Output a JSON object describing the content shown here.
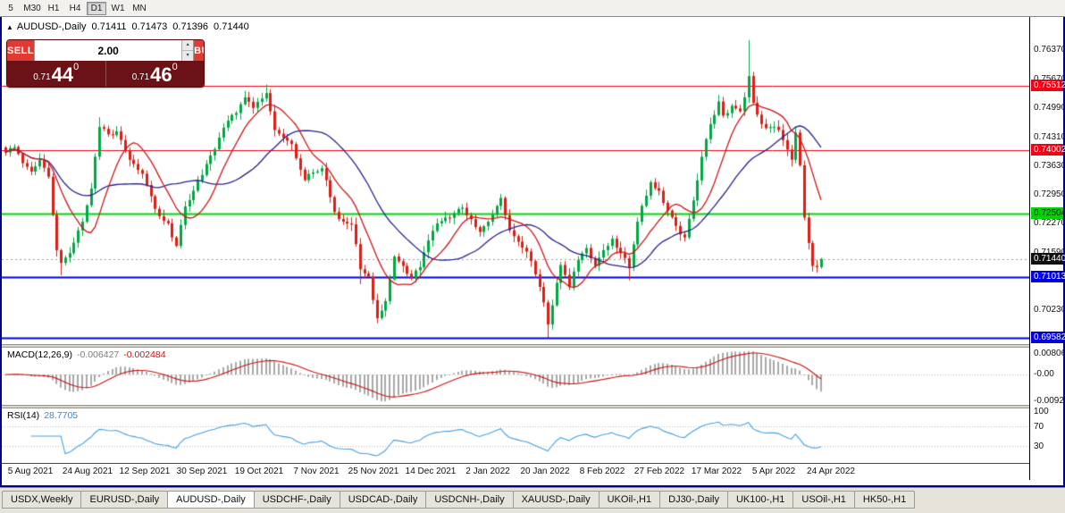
{
  "toolbar": {
    "timeframes": [
      "5",
      "M30",
      "H1",
      "H4",
      "D1",
      "W1",
      "MN"
    ],
    "active": "D1"
  },
  "chart": {
    "title": "AUDUSD-,Daily",
    "ohlc": {
      "open": "0.71411",
      "high": "0.71473",
      "low": "0.71396",
      "close": "0.71440"
    }
  },
  "trade_panel": {
    "sell_label": "SELL",
    "buy_label": "BUY",
    "volume": "2.00",
    "bid": {
      "prefix": "0.71",
      "pips": "44",
      "point": "0"
    },
    "ask": {
      "prefix": "0.71",
      "pips": "46",
      "point": "0"
    }
  },
  "price_scale": {
    "badges": [
      {
        "text": "0.75512",
        "bg": "#f00014",
        "fg": "#ffffff"
      },
      {
        "text": "0.74002",
        "bg": "#f00014",
        "fg": "#ffffff"
      },
      {
        "text": "0.72504",
        "bg": "#00d400",
        "fg": "#002b00"
      },
      {
        "text": "0.71440",
        "bg": "#101010",
        "fg": "#ffffff"
      },
      {
        "text": "0.71013",
        "bg": "#0000dc",
        "fg": "#ffffff"
      },
      {
        "text": "0.69582",
        "bg": "#0000dc",
        "fg": "#ffffff"
      }
    ]
  },
  "macd_header": {
    "label": "MACD(12,26,9)",
    "main": "-0.006427",
    "signal": "-0.002484"
  },
  "rsi_header": {
    "label": "RSI(14)",
    "value": "28.7705"
  },
  "tabs": {
    "active_index": 2,
    "items": [
      "USDX,Weekly",
      "EURUSD-,Daily",
      "AUDUSD-,Daily",
      "USDCHF-,Daily",
      "USDCAD-,Daily",
      "USDCNH-,Daily",
      "XAUUSD-,Daily",
      "UKOil-,H1",
      "DJ30-,Daily",
      "UK100-,H1",
      "USOil-,H1",
      "HK50-,H1"
    ]
  },
  "chart_data": {
    "type": "candlestick",
    "symbol": "AUDUSD",
    "timeframe": "Daily",
    "ylim": [
      0.6948,
      0.771
    ],
    "y_ticks": [
      "0.76370",
      "0.75670",
      "0.74990",
      "0.74310",
      "0.73630",
      "0.72950",
      "0.72270",
      "0.71590",
      "0.70230"
    ],
    "x_labels": [
      "5 Aug 2021",
      "24 Aug 2021",
      "12 Sep 2021",
      "30 Sep 2021",
      "19 Oct 2021",
      "7 Nov 2021",
      "25 Nov 2021",
      "14 Dec 2021",
      "2 Jan 2022",
      "20 Jan 2022",
      "8 Feb 2022",
      "27 Feb 2022",
      "17 Mar 2022",
      "5 Apr 2022",
      "24 Apr 2022"
    ],
    "candle_count": 192,
    "first_x": 4,
    "spacing": 4.78,
    "body_width": 3,
    "noise": 0.0013,
    "candle_colors": {
      "up": "#00a843",
      "down": "#dc1f14"
    },
    "close_waypoints": [
      [
        0,
        0.7395
      ],
      [
        2,
        0.7408
      ],
      [
        4,
        0.737
      ],
      [
        6,
        0.735
      ],
      [
        8,
        0.7378
      ],
      [
        10,
        0.7338
      ],
      [
        12,
        0.7165
      ],
      [
        13,
        0.7135
      ],
      [
        15,
        0.7158
      ],
      [
        18,
        0.7232
      ],
      [
        20,
        0.731
      ],
      [
        22,
        0.7455
      ],
      [
        24,
        0.7438
      ],
      [
        26,
        0.7445
      ],
      [
        28,
        0.74
      ],
      [
        30,
        0.7368
      ],
      [
        32,
        0.7345
      ],
      [
        34,
        0.7292
      ],
      [
        36,
        0.7245
      ],
      [
        38,
        0.7228
      ],
      [
        40,
        0.7175
      ],
      [
        42,
        0.7268
      ],
      [
        44,
        0.7305
      ],
      [
        46,
        0.7342
      ],
      [
        48,
        0.7388
      ],
      [
        50,
        0.743
      ],
      [
        52,
        0.747
      ],
      [
        54,
        0.7488
      ],
      [
        56,
        0.7525
      ],
      [
        58,
        0.75
      ],
      [
        61,
        0.7535
      ],
      [
        63,
        0.7448
      ],
      [
        65,
        0.743
      ],
      [
        67,
        0.7415
      ],
      [
        70,
        0.733
      ],
      [
        72,
        0.7348
      ],
      [
        74,
        0.7358
      ],
      [
        76,
        0.729
      ],
      [
        77,
        0.7255
      ],
      [
        79,
        0.7232
      ],
      [
        81,
        0.7226
      ],
      [
        83,
        0.712
      ],
      [
        85,
        0.7102
      ],
      [
        87,
        0.7005
      ],
      [
        89,
        0.7045
      ],
      [
        91,
        0.715
      ],
      [
        93,
        0.7128
      ],
      [
        95,
        0.7098
      ],
      [
        97,
        0.7125
      ],
      [
        99,
        0.7188
      ],
      [
        101,
        0.7228
      ],
      [
        103,
        0.7242
      ],
      [
        105,
        0.7252
      ],
      [
        107,
        0.7265
      ],
      [
        109,
        0.7238
      ],
      [
        111,
        0.7208
      ],
      [
        113,
        0.7232
      ],
      [
        116,
        0.7288
      ],
      [
        118,
        0.7212
      ],
      [
        120,
        0.7185
      ],
      [
        122,
        0.7162
      ],
      [
        124,
        0.7108
      ],
      [
        126,
        0.7042
      ],
      [
        127,
        0.699
      ],
      [
        128,
        0.7035
      ],
      [
        130,
        0.713
      ],
      [
        132,
        0.7078
      ],
      [
        134,
        0.7142
      ],
      [
        136,
        0.717
      ],
      [
        138,
        0.7128
      ],
      [
        140,
        0.7165
      ],
      [
        142,
        0.7192
      ],
      [
        144,
        0.7158
      ],
      [
        146,
        0.7125
      ],
      [
        148,
        0.7232
      ],
      [
        151,
        0.7325
      ],
      [
        153,
        0.7305
      ],
      [
        155,
        0.7258
      ],
      [
        157,
        0.7222
      ],
      [
        159,
        0.7195
      ],
      [
        161,
        0.7282
      ],
      [
        163,
        0.7385
      ],
      [
        165,
        0.7462
      ],
      [
        167,
        0.7515
      ],
      [
        168,
        0.7482
      ],
      [
        170,
        0.7505
      ],
      [
        172,
        0.7492
      ],
      [
        173,
        0.7525
      ],
      [
        174,
        0.7575
      ],
      [
        175,
        0.7512
      ],
      [
        177,
        0.7462
      ],
      [
        179,
        0.7455
      ],
      [
        181,
        0.7448
      ],
      [
        183,
        0.7402
      ],
      [
        184,
        0.7378
      ],
      [
        185,
        0.7442
      ],
      [
        186,
        0.7365
      ],
      [
        187,
        0.7242
      ],
      [
        188,
        0.7182
      ],
      [
        189,
        0.7128
      ],
      [
        190,
        0.7125
      ],
      [
        191,
        0.7144
      ]
    ],
    "wick_overrides": {
      "13": {
        "low": 0.7106
      },
      "22": {
        "high": 0.7478
      },
      "61": {
        "high": 0.7555
      },
      "83": {
        "low": 0.7085
      },
      "87": {
        "low": 0.6993
      },
      "127": {
        "low": 0.6958
      },
      "146": {
        "low": 0.7094
      },
      "174": {
        "high": 0.766
      },
      "187": {
        "low": 0.7235
      }
    },
    "moving_averages": [
      {
        "period": 10,
        "color": "#d01414"
      },
      {
        "period": 25,
        "color": "#24248e"
      }
    ],
    "levels": [
      {
        "price": 0.75512,
        "color": "#f00014",
        "width": 1
      },
      {
        "price": 0.74002,
        "color": "#f00014",
        "width": 1
      },
      {
        "price": 0.72504,
        "color": "#00d400",
        "width": 2
      },
      {
        "price": 0.71013,
        "color": "#0000dc",
        "width": 2
      },
      {
        "price": 0.69582,
        "color": "#0000dc",
        "width": 2
      }
    ],
    "current_price": 0.7144,
    "macd": {
      "params": [
        12,
        26,
        9
      ],
      "last_main": -0.006427,
      "last_signal": -0.002484,
      "range": [
        -0.00928,
        0.008061
      ],
      "axis_labels": [
        "0.008061",
        "-0.00",
        "-0.00928"
      ],
      "hist_color": "#a8a8a8",
      "signal_color": "#cc1111"
    },
    "rsi": {
      "period": 14,
      "last": 28.7705,
      "levels": [
        70,
        30
      ],
      "axis_labels": [
        "100",
        "70",
        "30"
      ],
      "line_color": "#46a0e0"
    }
  }
}
